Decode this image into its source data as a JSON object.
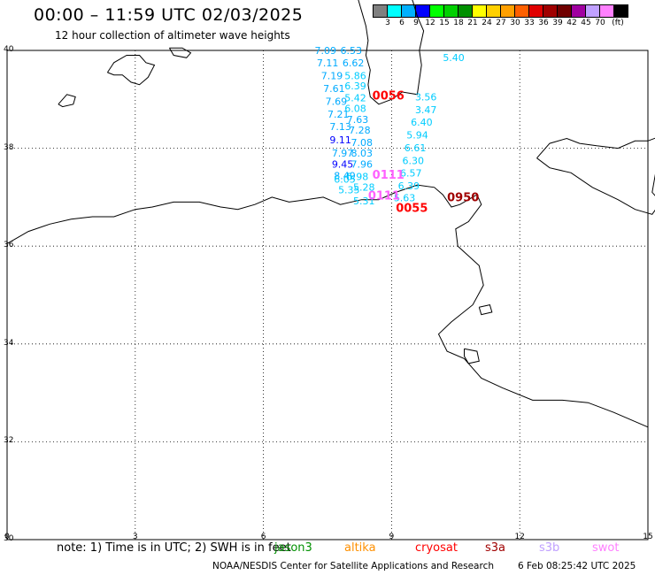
{
  "header": {
    "title": "00:00 – 11:59 UTC 02/03/2025",
    "subtitle": "12 hour collection of altimeter wave heights"
  },
  "colorbar": {
    "colors": [
      "#808080",
      "#00ffff",
      "#00b0ff",
      "#0000ff",
      "#00ff00",
      "#00d000",
      "#009000",
      "#ffff00",
      "#ffd000",
      "#ffa000",
      "#ff6000",
      "#e00000",
      "#a00000",
      "#700000",
      "#a000a0",
      "#c0a0ff",
      "#ff80ff",
      "#000000"
    ],
    "labels": [
      "3",
      "6",
      "9",
      "12",
      "15",
      "18",
      "21",
      "24",
      "27",
      "30",
      "33",
      "36",
      "39",
      "42",
      "45",
      "70",
      "(ft)"
    ]
  },
  "axes": {
    "lat_labels": [
      "40",
      "38",
      "36",
      "34",
      "32",
      "30"
    ],
    "lon_labels": [
      "0",
      "3",
      "6",
      "9",
      "12",
      "15"
    ]
  },
  "wave_labels": [
    {
      "text": "7.09",
      "color": "#00aaff",
      "lon": 7.2,
      "lat": 39.93
    },
    {
      "text": "6.53",
      "color": "#00aaff",
      "lon": 7.8,
      "lat": 39.93
    },
    {
      "text": "7.11",
      "color": "#00aaff",
      "lon": 7.25,
      "lat": 39.67
    },
    {
      "text": "6.62",
      "color": "#00aaff",
      "lon": 7.85,
      "lat": 39.67
    },
    {
      "text": "7.19",
      "color": "#00aaff",
      "lon": 7.35,
      "lat": 39.41
    },
    {
      "text": "5.86",
      "color": "#00ccff",
      "lon": 7.9,
      "lat": 39.41
    },
    {
      "text": "7.61",
      "color": "#00aaff",
      "lon": 7.4,
      "lat": 39.15
    },
    {
      "text": "6.39",
      "color": "#00ccff",
      "lon": 7.9,
      "lat": 39.2
    },
    {
      "text": "7.69",
      "color": "#00aaff",
      "lon": 7.45,
      "lat": 38.89
    },
    {
      "text": "5.42",
      "color": "#00ccff",
      "lon": 7.9,
      "lat": 38.96
    },
    {
      "text": "7.21",
      "color": "#00aaff",
      "lon": 7.5,
      "lat": 38.63
    },
    {
      "text": "6.08",
      "color": "#00ccff",
      "lon": 7.9,
      "lat": 38.74
    },
    {
      "text": "7.13",
      "color": "#00aaff",
      "lon": 7.55,
      "lat": 38.37
    },
    {
      "text": "7.63",
      "color": "#00aaff",
      "lon": 7.95,
      "lat": 38.52
    },
    {
      "text": "9.11",
      "color": "#0000ff",
      "lon": 7.55,
      "lat": 38.1
    },
    {
      "text": "7.28",
      "color": "#00aaff",
      "lon": 8.0,
      "lat": 38.3
    },
    {
      "text": "7.97",
      "color": "#00aaff",
      "lon": 7.6,
      "lat": 37.83
    },
    {
      "text": "7.08",
      "color": "#00aaff",
      "lon": 8.05,
      "lat": 38.05
    },
    {
      "text": "9.45",
      "color": "#0000ff",
      "lon": 7.6,
      "lat": 37.6
    },
    {
      "text": "8.03",
      "color": "#00aaff",
      "lon": 8.05,
      "lat": 37.83
    },
    {
      "text": "7.96",
      "color": "#00aaff",
      "lon": 8.05,
      "lat": 37.6
    },
    {
      "text": "8.49",
      "color": "#00aaff",
      "lon": 7.65,
      "lat": 37.37
    },
    {
      "text": "6.05",
      "color": "#00ccff",
      "lon": 7.65,
      "lat": 37.3
    },
    {
      "text": "5.98",
      "color": "#00ccff",
      "lon": 7.95,
      "lat": 37.35
    },
    {
      "text": "5.35",
      "color": "#00ccff",
      "lon": 7.75,
      "lat": 37.08
    },
    {
      "text": "5.28",
      "color": "#00ccff",
      "lon": 8.1,
      "lat": 37.13
    },
    {
      "text": "5.31",
      "color": "#00ccff",
      "lon": 8.1,
      "lat": 36.85
    },
    {
      "text": "5.40",
      "color": "#00ccff",
      "lon": 10.2,
      "lat": 39.78
    },
    {
      "text": "3.56",
      "color": "#00ccff",
      "lon": 9.55,
      "lat": 38.98
    },
    {
      "text": "3.47",
      "color": "#00ccff",
      "lon": 9.55,
      "lat": 38.72
    },
    {
      "text": "6.40",
      "color": "#00ccff",
      "lon": 9.45,
      "lat": 38.46
    },
    {
      "text": "5.94",
      "color": "#00ccff",
      "lon": 9.35,
      "lat": 38.2
    },
    {
      "text": "6.61",
      "color": "#00ccff",
      "lon": 9.3,
      "lat": 37.94
    },
    {
      "text": "6.30",
      "color": "#00ccff",
      "lon": 9.25,
      "lat": 37.68
    },
    {
      "text": "6.57",
      "color": "#00ccff",
      "lon": 9.2,
      "lat": 37.42
    },
    {
      "text": "6.39",
      "color": "#00ccff",
      "lon": 9.15,
      "lat": 37.16
    },
    {
      "text": "5.63",
      "color": "#00ccff",
      "lon": 9.05,
      "lat": 36.92
    },
    {
      "text": "0111",
      "color": "#ff60ff",
      "lon": 8.55,
      "lat": 37.38
    },
    {
      "text": "0111",
      "color": "#ff60ff",
      "lon": 8.45,
      "lat": 36.95
    },
    {
      "text": "0056",
      "color": "#ff0000",
      "lon": 8.55,
      "lat": 39.0
    },
    {
      "text": "0055",
      "color": "#ff0000",
      "lon": 9.1,
      "lat": 36.7
    },
    {
      "text": "0950",
      "color": "#a00000",
      "lon": 10.3,
      "lat": 36.92
    }
  ],
  "note": "note: 1) Time is in UTC; 2) SWH is in feet",
  "satellites": [
    {
      "name": "jason3",
      "color": "#009000"
    },
    {
      "name": "altika",
      "color": "#ff9000"
    },
    {
      "name": "cryosat",
      "color": "#ff0000"
    },
    {
      "name": "s3a",
      "color": "#a00000"
    },
    {
      "name": "s3b",
      "color": "#c0a0ff"
    },
    {
      "name": "swot",
      "color": "#ff80ff"
    }
  ],
  "footer": {
    "credit": "NOAA/NESDIS Center for Satellite Applications and Research",
    "timestamp": "6 Feb 08:25:42 UTC 2025"
  }
}
